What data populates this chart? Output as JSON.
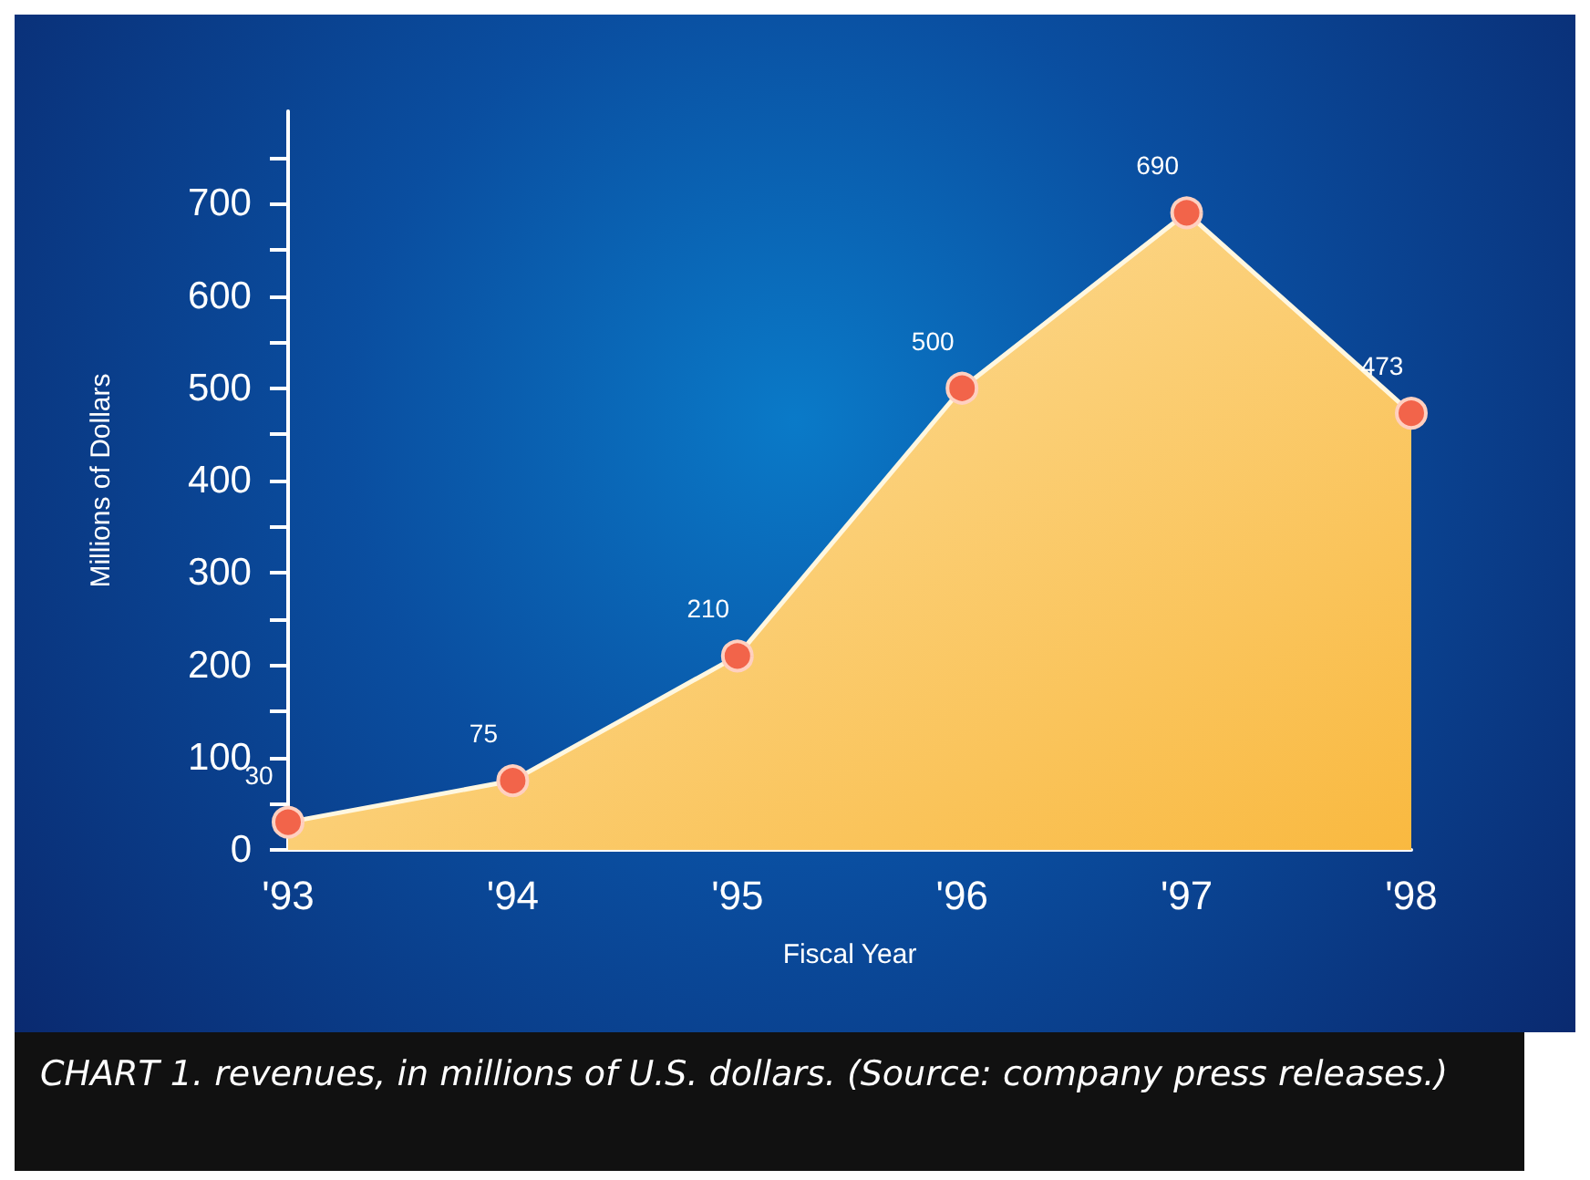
{
  "chart_data": {
    "type": "area",
    "xlabel": "Fiscal Year",
    "ylabel": "Millions of Dollars",
    "categories": [
      "'93",
      "'94",
      "'95",
      "'96",
      "'97",
      "'98"
    ],
    "series": [
      {
        "color": "#f9b940",
        "values": [
          30,
          75,
          210,
          500,
          690,
          473
        ]
      }
    ],
    "ylim": [
      0,
      800
    ],
    "yticks": [
      0,
      {
        "value": 50,
        "label": null
      },
      100,
      {
        "value": 150,
        "label": null
      },
      200,
      {
        "value": 250,
        "label": null
      },
      300,
      {
        "value": 350,
        "label": null
      },
      400,
      {
        "value": 450,
        "label": null
      },
      500,
      {
        "value": 550,
        "label": null
      },
      600,
      {
        "value": 650,
        "label": null
      },
      700,
      {
        "value": 750,
        "label": null
      }
    ],
    "data_labels": true,
    "marker": "circle",
    "grid": false,
    "annotations": [
      "CHART 1. revenues, in millions of U.S. dollars. (Source: company press releases.)"
    ]
  }
}
